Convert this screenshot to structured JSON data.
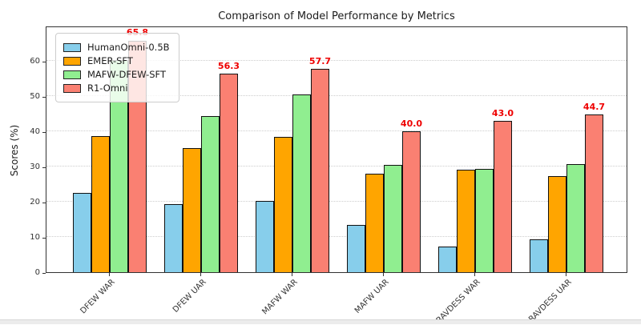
{
  "title": "Comparison of Model Performance by Metrics",
  "ylabel": "Scores (%)",
  "chart_data": {
    "type": "bar",
    "title": "Comparison of Model Performance by Metrics",
    "xlabel": "",
    "ylabel": "Scores (%)",
    "categories": [
      "DFEW WAR",
      "DFEW UAR",
      "MAFW WAR",
      "MAFW UAR",
      "RAVDESS WAR",
      "RAVDESS UAR"
    ],
    "series": [
      {
        "name": "HumanOmni-0.5B",
        "color": "#87CEEB",
        "values": [
          22.6,
          19.4,
          20.2,
          13.5,
          7.3,
          9.4
        ]
      },
      {
        "name": "EMER-SFT",
        "color": "#FFA500",
        "values": [
          38.7,
          35.3,
          38.4,
          28.0,
          29.0,
          27.2
        ]
      },
      {
        "name": "MAFW-DFEW-SFT",
        "color": "#90EE90",
        "values": [
          60.2,
          44.4,
          50.4,
          30.4,
          29.3,
          30.8
        ]
      },
      {
        "name": "R1-Omni",
        "color": "#FA8072",
        "values": [
          65.8,
          56.3,
          57.7,
          40.0,
          43.0,
          44.7
        ],
        "data_labels": [
          "65.8",
          "56.3",
          "57.7",
          "40.0",
          "43.0",
          "44.7"
        ],
        "data_label_color": "#ee0000"
      }
    ],
    "yticks": [
      0,
      10,
      20,
      30,
      40,
      50,
      60
    ],
    "ylim": [
      0,
      70
    ],
    "grid": "horizontal-dotted",
    "legend_position": "upper-left",
    "bar_edge_color": "#000000"
  }
}
